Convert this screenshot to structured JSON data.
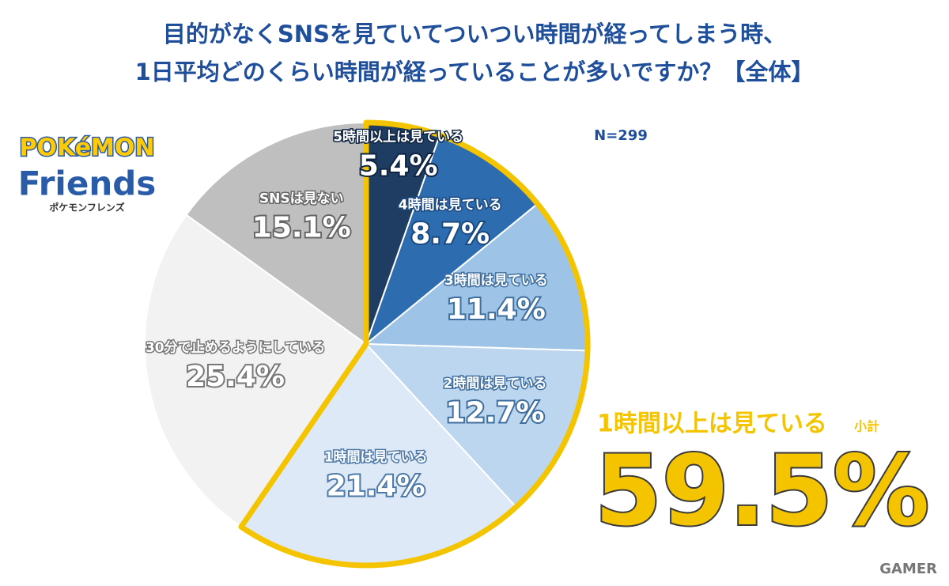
{
  "chart_data": {
    "type": "pie",
    "title": [
      "目的がなくSNSを見ていてついつい時間が経ってしまう時、",
      "1日平均どのくらい時間が経っていることが多いですか？【全体】"
    ],
    "annotation": "N=299",
    "categories": [
      "5時間以上は見ている",
      "4時間は見ている",
      "3時間は見ている",
      "2時間は見ている",
      "1時間は見ている",
      "30分で止めるようにしている",
      "SNSは見ない"
    ],
    "values": [
      5.4,
      8.7,
      11.4,
      12.7,
      21.4,
      25.4,
      15.1
    ],
    "value_labels": [
      "5.4%",
      "8.7%",
      "11.4%",
      "12.7%",
      "21.4%",
      "25.4%",
      "15.1%"
    ],
    "colors": [
      "#1f3d63",
      "#2e6cb0",
      "#9dc3e6",
      "#bcd6ef",
      "#dde9f6",
      "#f2f2f2",
      "#bfbfbf"
    ],
    "subtotal": {
      "label": "1時間以上は見ている",
      "note": "小計",
      "value": 59.5,
      "value_label": "59.5%",
      "color": "#f5c400"
    },
    "logo": [
      "POKéMON",
      "Friends",
      "ポケモンフレンズ"
    ],
    "watermark": "GAMER"
  }
}
